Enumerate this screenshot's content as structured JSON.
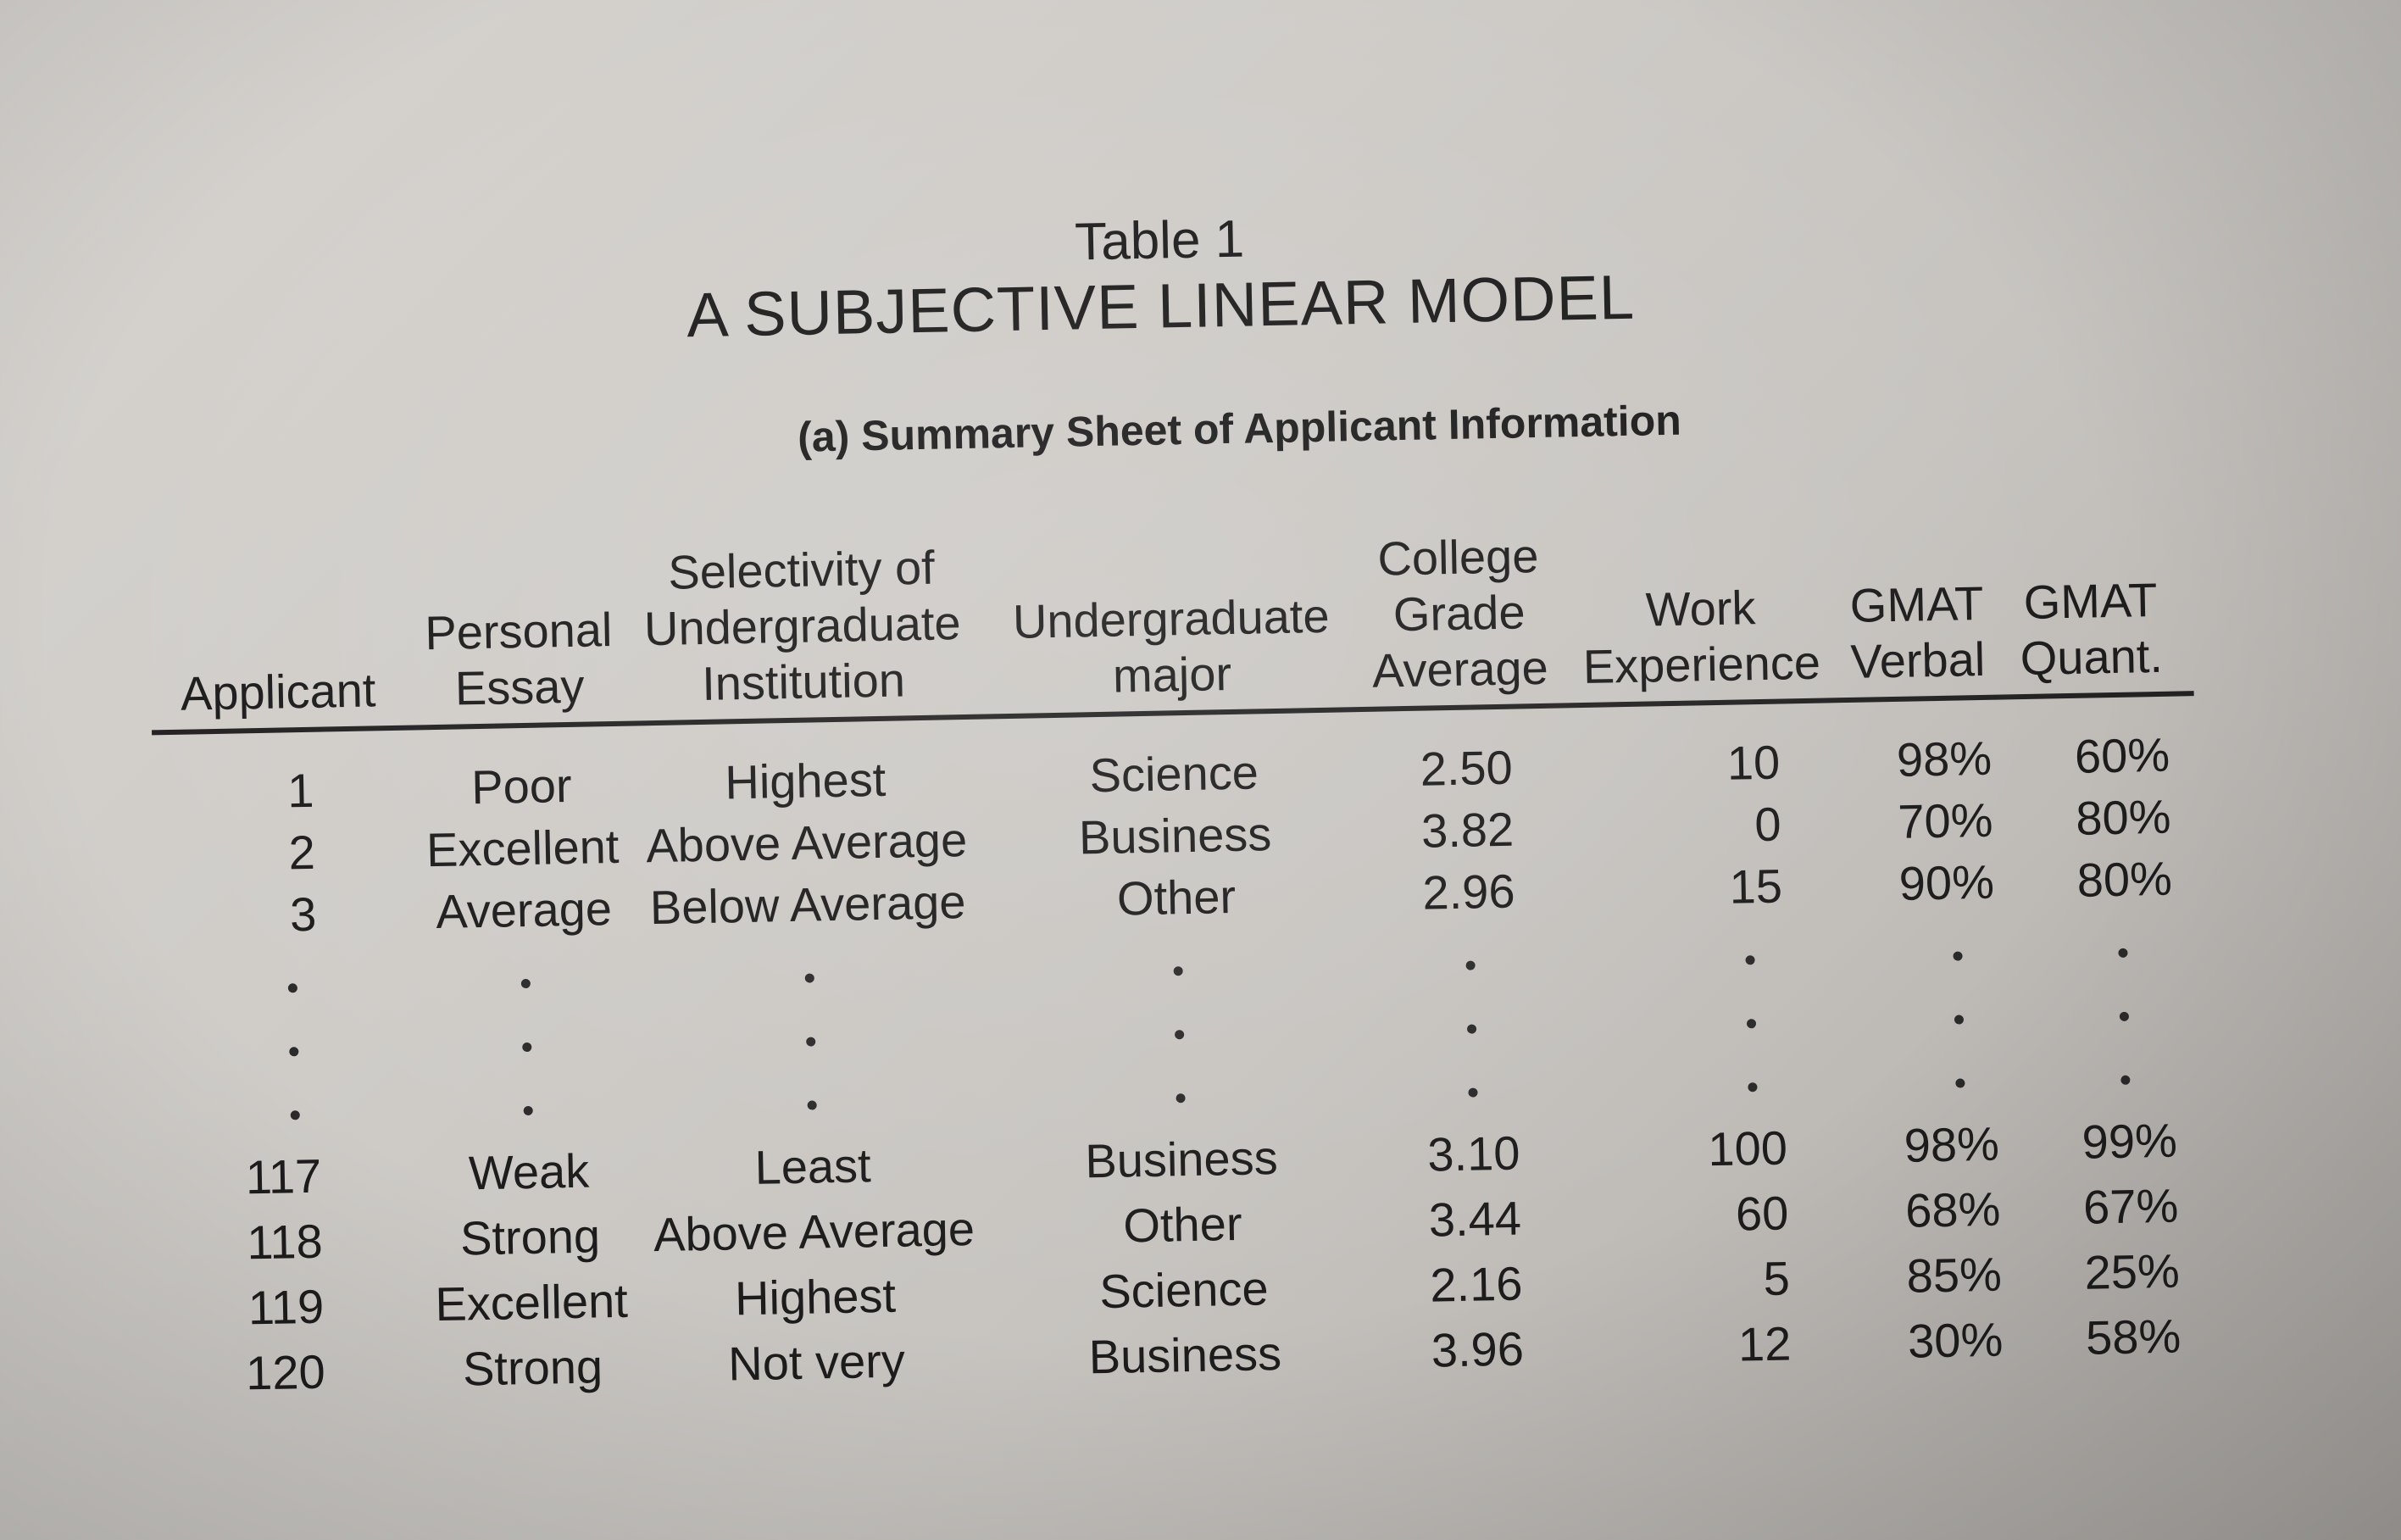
{
  "table": {
    "number": "Table 1",
    "title": "A SUBJECTIVE LINEAR MODEL",
    "subheading": "(a) Summary Sheet of Applicant Information"
  },
  "headers": {
    "applicant": [
      "Applicant"
    ],
    "essay": [
      "Personal",
      "Essay"
    ],
    "selectivity": [
      "Selectivity of",
      "Undergraduate",
      "Institution"
    ],
    "major": [
      "Undergraduate",
      "major"
    ],
    "gpa": [
      "College",
      "Grade",
      "Average"
    ],
    "work": [
      "Work",
      "Experience"
    ],
    "verbal": [
      "GMAT",
      "Verbal"
    ],
    "quant": [
      "GMAT",
      "Quant."
    ]
  },
  "rows": [
    {
      "applicant": "1",
      "essay": "Poor",
      "selectivity": "Highest",
      "major": "Science",
      "gpa": "2.50",
      "work": "10",
      "verbal": "98%",
      "quant": "60%"
    },
    {
      "applicant": "2",
      "essay": "Excellent",
      "selectivity": "Above Average",
      "major": "Business",
      "gpa": "3.82",
      "work": "0",
      "verbal": "70%",
      "quant": "80%"
    },
    {
      "applicant": "3",
      "essay": "Average",
      "selectivity": "Below Average",
      "major": "Other",
      "gpa": "2.96",
      "work": "15",
      "verbal": "90%",
      "quant": "80%"
    },
    {
      "applicant": "117",
      "essay": "Weak",
      "selectivity": "Least",
      "major": "Business",
      "gpa": "3.10",
      "work": "100",
      "verbal": "98%",
      "quant": "99%"
    },
    {
      "applicant": "118",
      "essay": "Strong",
      "selectivity": "Above Average",
      "major": "Other",
      "gpa": "3.44",
      "work": "60",
      "verbal": "68%",
      "quant": "67%"
    },
    {
      "applicant": "119",
      "essay": "Excellent",
      "selectivity": "Highest",
      "major": "Science",
      "gpa": "2.16",
      "work": "5",
      "verbal": "85%",
      "quant": "25%"
    },
    {
      "applicant": "120",
      "essay": "Strong",
      "selectivity": "Not very",
      "major": "Business",
      "gpa": "3.96",
      "work": "12",
      "verbal": "30%",
      "quant": "58%"
    }
  ]
}
